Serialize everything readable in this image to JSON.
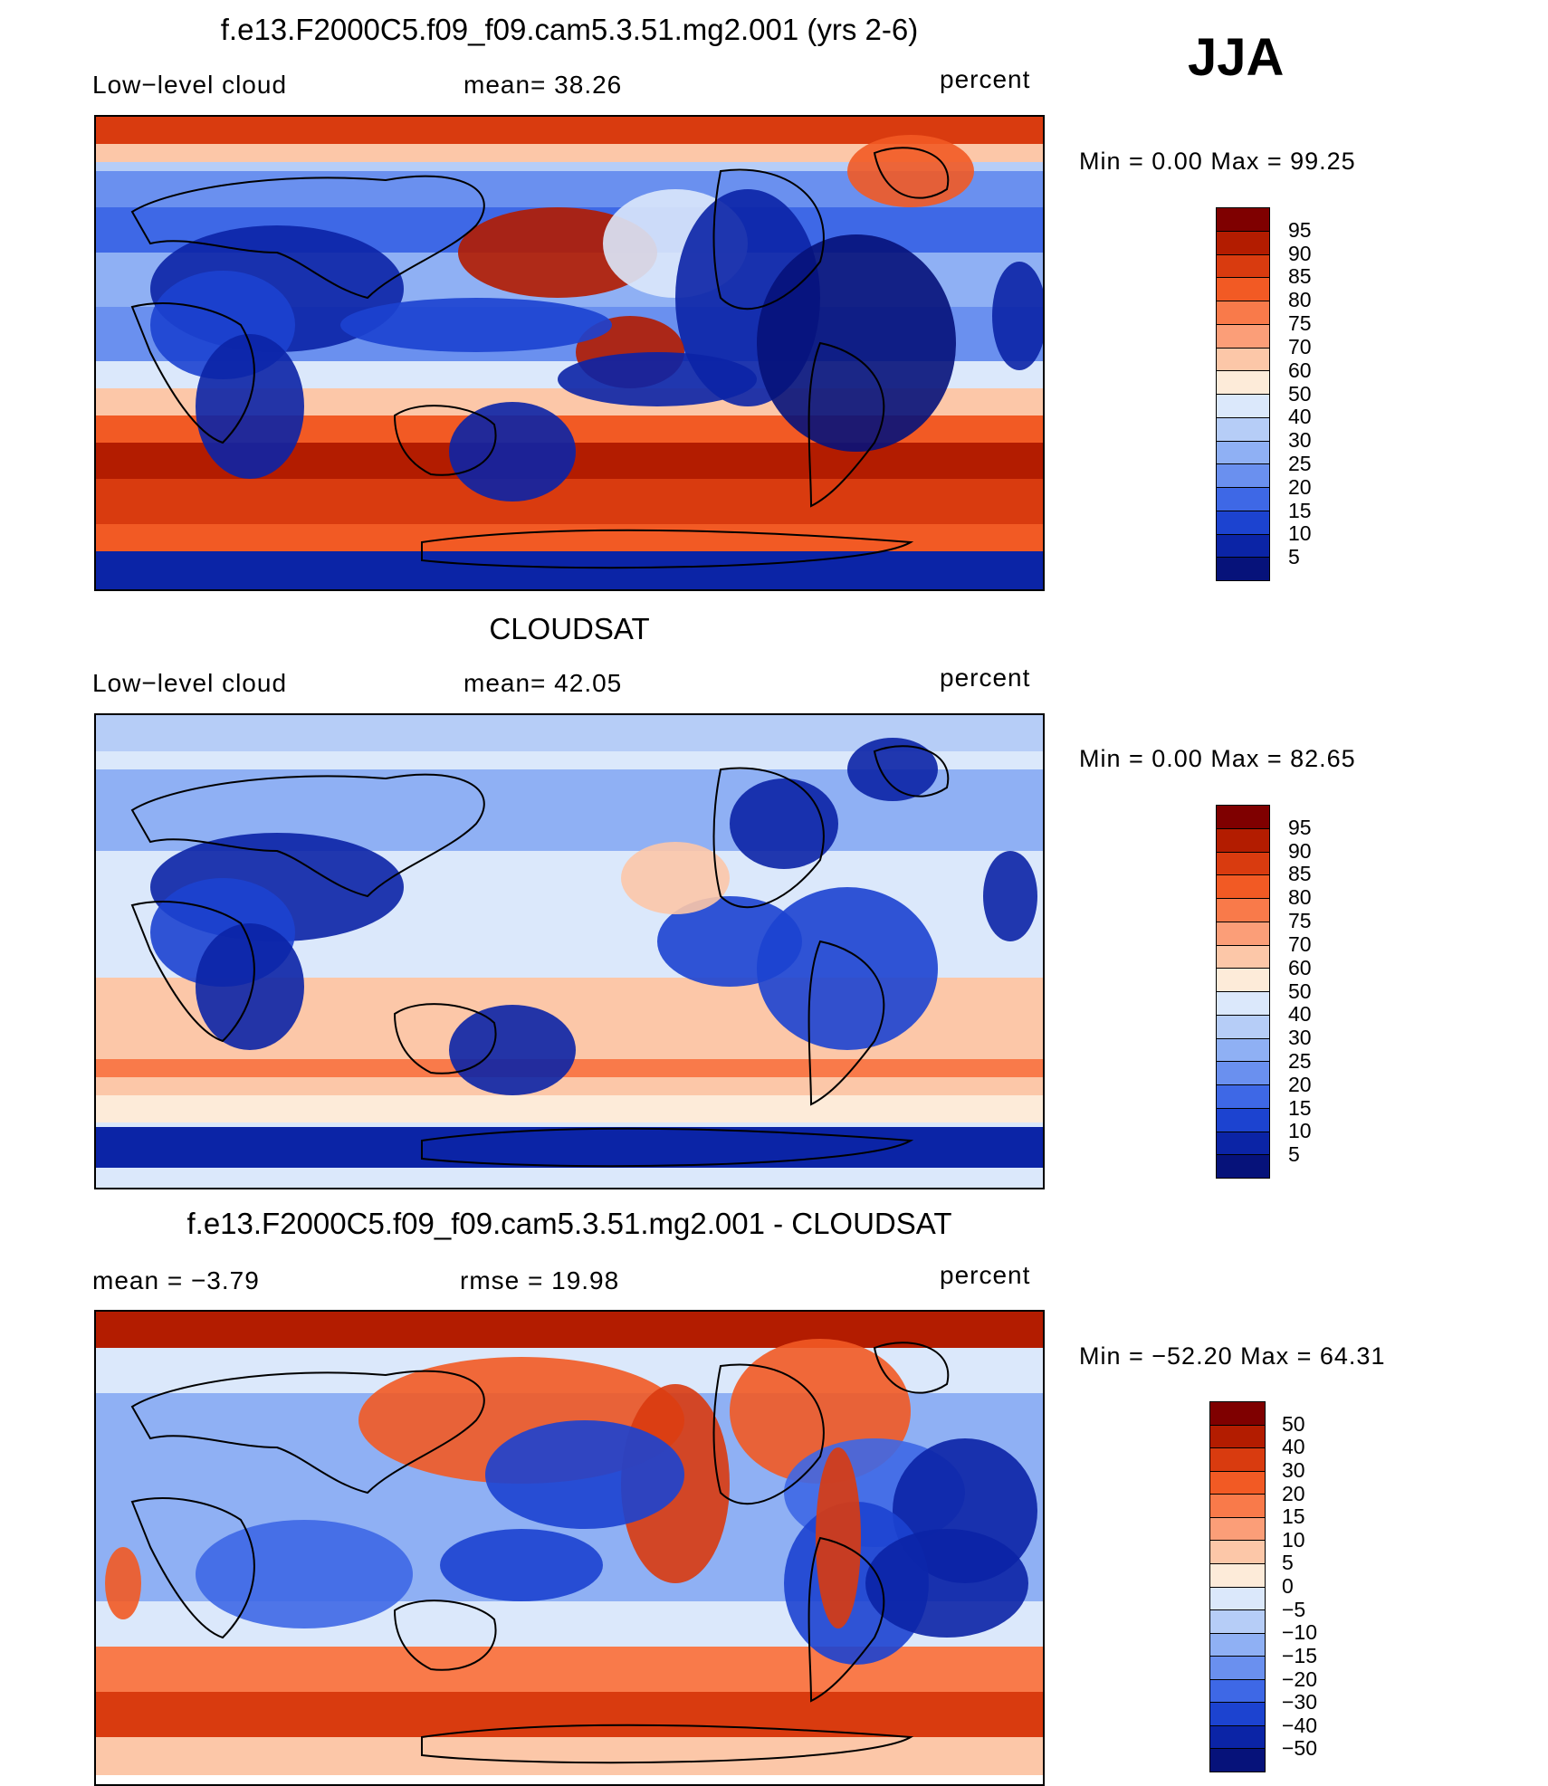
{
  "season": "JJA",
  "units": "percent",
  "panels": [
    {
      "id": "model",
      "title": "f.e13.F2000C5.f09_f09.cam5.3.51.mg2.001 (yrs 2-6)",
      "left_label": "Low−level  cloud",
      "center_label": "mean=   38.26",
      "right_label": "percent",
      "minmax": "Min  =      0.00  Max  =     99.25",
      "colorbar_labels": [
        "95",
        "90",
        "85",
        "80",
        "75",
        "70",
        "60",
        "50",
        "40",
        "30",
        "25",
        "20",
        "15",
        "10",
        "5"
      ],
      "colorbar_colors": [
        "#7f0000",
        "#b31c00",
        "#d93b0f",
        "#f25a24",
        "#f97a4a",
        "#fb9e78",
        "#fcc7a8",
        "#fdebd9",
        "#dbe8fb",
        "#b6cdf7",
        "#8fb0f4",
        "#6a90ef",
        "#3e68e6",
        "#1c43d0",
        "#0b24a6",
        "#06127a"
      ],
      "map_style": "model"
    },
    {
      "id": "obs",
      "title": "CLOUDSAT",
      "left_label": "Low−level  cloud",
      "center_label": "mean=   42.05",
      "right_label": "percent",
      "minmax": "Min  =      0.00  Max  =     82.65",
      "colorbar_labels": [
        "95",
        "90",
        "85",
        "80",
        "75",
        "70",
        "60",
        "50",
        "40",
        "30",
        "25",
        "20",
        "15",
        "10",
        "5"
      ],
      "colorbar_colors": [
        "#7f0000",
        "#b31c00",
        "#d93b0f",
        "#f25a24",
        "#f97a4a",
        "#fb9e78",
        "#fcc7a8",
        "#fdebd9",
        "#dbe8fb",
        "#b6cdf7",
        "#8fb0f4",
        "#6a90ef",
        "#3e68e6",
        "#1c43d0",
        "#0b24a6",
        "#06127a"
      ],
      "map_style": "obs"
    },
    {
      "id": "diff",
      "title": "f.e13.F2000C5.f09_f09.cam5.3.51.mg2.001 - CLOUDSAT",
      "left_label": "mean  =    −3.79",
      "center_label": "rmse  =    19.98",
      "right_label": "percent",
      "minmax": "Min  = −52.20  Max  =    64.31",
      "colorbar_labels": [
        "50",
        "40",
        "30",
        "20",
        "15",
        "10",
        "5",
        "0",
        "−5",
        "−10",
        "−15",
        "−20",
        "−30",
        "−40",
        "−50"
      ],
      "colorbar_colors": [
        "#7f0000",
        "#b31c00",
        "#d93b0f",
        "#f25a24",
        "#f97a4a",
        "#fb9e78",
        "#fcc7a8",
        "#fdebd9",
        "#dbe8fb",
        "#b6cdf7",
        "#8fb0f4",
        "#6a90ef",
        "#3e68e6",
        "#1c43d0",
        "#0b24a6",
        "#06127a"
      ],
      "map_style": "diff"
    }
  ]
}
